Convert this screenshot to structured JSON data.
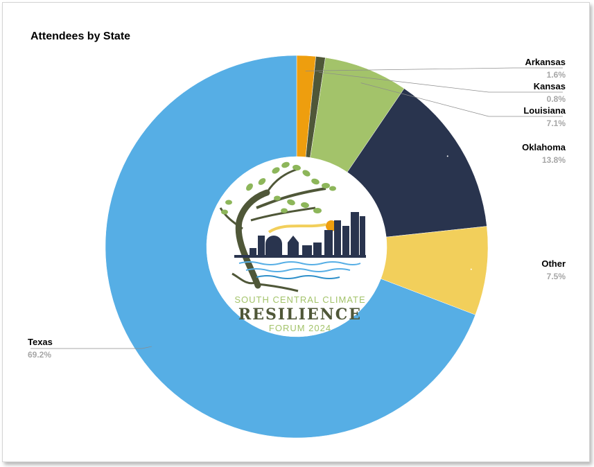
{
  "chart_data": {
    "type": "pie",
    "title": "Attendees by State",
    "slices": [
      {
        "name": "Arkansas",
        "value": 1.6,
        "label": "1.6%",
        "color": "#EE9E0E"
      },
      {
        "name": "Kansas",
        "value": 0.8,
        "label": "0.8%",
        "color": "#4F5738"
      },
      {
        "name": "Louisiana",
        "value": 7.1,
        "label": "7.1%",
        "color": "#A3C36A"
      },
      {
        "name": "Oklahoma",
        "value": 13.8,
        "label": "13.8%",
        "color": "#29344E"
      },
      {
        "name": "Other",
        "value": 7.5,
        "label": "7.5%",
        "color": "#F2CF5B"
      },
      {
        "name": "Texas",
        "value": 69.2,
        "label": "69.2%",
        "color": "#56AEE5"
      }
    ],
    "legend": "none",
    "center_logo": {
      "line1": "SOUTH CENTRAL CLIMATE",
      "line2": "RESILIENCE",
      "line3": "FORUM 2024"
    }
  }
}
